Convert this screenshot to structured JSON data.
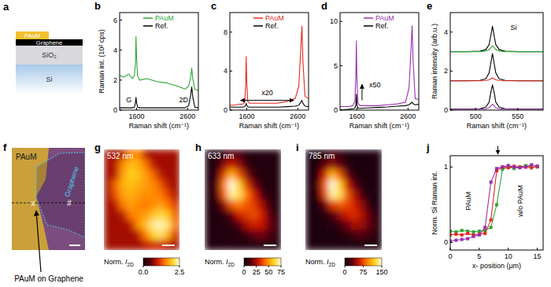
{
  "chart_data": [
    {
      "type": "diagram",
      "panel": "a",
      "layers": [
        {
          "label": "PAuM",
          "color": "#f2c12e"
        },
        {
          "label": "Graphene",
          "color": "#000000"
        },
        {
          "label": "SiO₂",
          "color": "#d9d9de"
        },
        {
          "label": "Si",
          "color": "#a9c9ea"
        }
      ]
    },
    {
      "type": "line",
      "panel": "b",
      "xlabel": "Raman shift (cm⁻¹)",
      "ylabel": "Raman int. (10² cps)",
      "x": [
        1270,
        1350,
        1450,
        1520,
        1560,
        1580,
        1590,
        1600,
        1620,
        1660,
        1800,
        2000,
        2200,
        2400,
        2550,
        2620,
        2660,
        2680,
        2700,
        2740,
        2810
      ],
      "xlim": [
        1270,
        2810
      ],
      "xticks": [
        1600,
        2600
      ],
      "ylim": [
        0,
        6.5
      ],
      "yticks": [
        0,
        2,
        4,
        6
      ],
      "legend": "top",
      "series": [
        {
          "name": "PAuM",
          "color": "#2ea836",
          "values": [
            2.3,
            2.2,
            2.4,
            2.1,
            2.3,
            3.2,
            4.9,
            3.6,
            2.3,
            2.0,
            2.1,
            1.9,
            1.8,
            1.6,
            1.4,
            1.6,
            2.2,
            2.8,
            2.1,
            1.4,
            1.3
          ]
        },
        {
          "name": "Ref.",
          "color": "#000000",
          "values": [
            0.15,
            0.15,
            0.15,
            0.15,
            0.2,
            0.5,
            0.85,
            0.5,
            0.2,
            0.15,
            0.15,
            0.15,
            0.15,
            0.15,
            0.15,
            0.3,
            1.0,
            1.55,
            0.9,
            0.2,
            0.15
          ]
        }
      ],
      "annotations": [
        {
          "text": "G",
          "x": 1450,
          "y": 0.55
        },
        {
          "text": "2D",
          "x": 2520,
          "y": 0.55
        }
      ]
    },
    {
      "type": "line",
      "panel": "c",
      "xlabel": "Raman shift (cm⁻¹)",
      "x": [
        1270,
        1350,
        1450,
        1520,
        1560,
        1580,
        1590,
        1600,
        1620,
        1660,
        1800,
        2000,
        2200,
        2400,
        2550,
        2620,
        2660,
        2680,
        2700,
        2740,
        2810
      ],
      "xlim": [
        1270,
        2810
      ],
      "xticks": [
        1600,
        2600
      ],
      "ylim": [
        0,
        10
      ],
      "yticks": [
        0,
        4,
        8
      ],
      "legend": "top",
      "series": [
        {
          "name": "PAuM",
          "color": "#e8281e",
          "values": [
            0.5,
            0.5,
            0.6,
            0.6,
            0.8,
            2.5,
            5.5,
            3.0,
            0.9,
            0.7,
            0.7,
            0.7,
            0.7,
            0.9,
            1.2,
            2.5,
            6.5,
            8.6,
            5.0,
            1.4,
            1.2
          ]
        },
        {
          "name": "Ref.",
          "color": "#000000",
          "values": [
            0.3,
            0.3,
            0.3,
            0.3,
            0.35,
            0.5,
            0.7,
            0.5,
            0.35,
            0.3,
            0.3,
            0.3,
            0.3,
            0.35,
            0.4,
            0.5,
            0.8,
            1.0,
            0.7,
            0.4,
            0.35
          ]
        }
      ],
      "annotations": [
        {
          "text": "x20",
          "x": 2000,
          "y": 1.5,
          "arrow": [
            1480,
            1.0,
            2520,
            1.0
          ],
          "arrow_style": "double"
        }
      ]
    },
    {
      "type": "line",
      "panel": "d",
      "xlabel": "Raman shift (cm⁻¹)",
      "x": [
        1270,
        1350,
        1450,
        1520,
        1560,
        1580,
        1590,
        1600,
        1620,
        1660,
        1800,
        2000,
        2200,
        2400,
        2550,
        2620,
        2660,
        2680,
        2700,
        2740,
        2810
      ],
      "xlim": [
        1270,
        2810
      ],
      "xticks": [
        1600,
        2600
      ],
      "ylim": [
        0,
        11
      ],
      "yticks": [
        0,
        5,
        10
      ],
      "legend": "top",
      "series": [
        {
          "name": "PAuM",
          "color": "#9b2fae",
          "values": [
            0.4,
            0.4,
            0.4,
            0.5,
            1.0,
            4.0,
            7.8,
            3.5,
            0.8,
            0.5,
            0.5,
            0.5,
            0.6,
            0.7,
            0.9,
            2.5,
            7.0,
            9.5,
            5.5,
            1.3,
            1.2
          ]
        },
        {
          "name": "Ref.",
          "color": "#000000",
          "values": [
            0,
            0.05,
            0.1,
            0.15,
            0.2,
            0.6,
            1.8,
            0.6,
            0.2,
            0.2,
            0.25,
            0.3,
            0.35,
            0.45,
            0.5,
            0.6,
            0.8,
            0.9,
            0.7,
            0.6,
            0.65
          ]
        }
      ],
      "annotations": [
        {
          "text": "x50",
          "x": 1950,
          "y": 2.6,
          "arrow": [
            1700,
            1.1,
            1700,
            2.9
          ],
          "arrow_style": "single"
        }
      ]
    },
    {
      "type": "line",
      "panel": "e",
      "xlabel": "Raman shift (cm⁻¹)",
      "ylabel": "Raman intensity (arb.u.)",
      "x": [
        470,
        490,
        505,
        512,
        516,
        518,
        520,
        522,
        524,
        528,
        535,
        550,
        580
      ],
      "xlim": [
        470,
        580
      ],
      "xticks": [
        500,
        550
      ],
      "ylim": [
        0,
        5
      ],
      "yticks": [
        0,
        2,
        4
      ],
      "series": [
        {
          "color": "#000000",
          "values": [
            3.0,
            3.0,
            3.02,
            3.1,
            3.35,
            3.8,
            4.3,
            3.8,
            3.35,
            3.1,
            3.02,
            3.0,
            3.0
          ]
        },
        {
          "color": "#2ea836",
          "values": [
            3.0,
            3.0,
            3.0,
            3.03,
            3.1,
            3.2,
            3.3,
            3.2,
            3.1,
            3.03,
            3.0,
            3.0,
            3.0
          ]
        },
        {
          "color": "#000000",
          "values": [
            1.5,
            1.5,
            1.52,
            1.6,
            1.9,
            2.4,
            2.9,
            2.4,
            1.9,
            1.6,
            1.52,
            1.5,
            1.5
          ]
        },
        {
          "color": "#e8281e",
          "values": [
            1.5,
            1.5,
            1.5,
            1.51,
            1.55,
            1.6,
            1.65,
            1.6,
            1.55,
            1.51,
            1.5,
            1.5,
            1.5
          ]
        },
        {
          "color": "#000000",
          "values": [
            0.05,
            0.05,
            0.07,
            0.15,
            0.4,
            0.9,
            1.3,
            0.9,
            0.4,
            0.15,
            0.07,
            0.05,
            0.05
          ]
        },
        {
          "color": "#9b2fae",
          "values": [
            0.05,
            0.05,
            0.05,
            0.07,
            0.12,
            0.22,
            0.3,
            0.22,
            0.12,
            0.07,
            0.05,
            0.05,
            0.05
          ]
        }
      ],
      "annotations": [
        {
          "text": "Si",
          "x": 545,
          "y": 4.1
        }
      ]
    },
    {
      "type": "image",
      "panel": "f",
      "labels": {
        "paum": "PAuM",
        "graphene": "Graphene",
        "point_x": "x",
        "point_hash": "#",
        "caption": "PAuM on Graphene"
      }
    },
    {
      "type": "heatmap",
      "panel": "g",
      "title": "532 nm",
      "cells": [
        [
          0.8,
          0.8,
          0.9,
          1.5,
          1.6,
          0.9,
          0.8,
          0.8,
          0.8,
          0.8
        ],
        [
          0.8,
          0.9,
          1.6,
          1.9,
          1.8,
          1.5,
          0.9,
          0.8,
          0.8,
          0.8
        ],
        [
          0.8,
          0.9,
          1.7,
          2.0,
          1.9,
          1.7,
          1.4,
          0.9,
          0.8,
          0.8
        ],
        [
          0.8,
          1.4,
          1.8,
          1.9,
          1.8,
          1.7,
          1.6,
          1.3,
          0.9,
          0.8
        ],
        [
          0.8,
          1.3,
          1.7,
          1.8,
          1.7,
          1.6,
          1.6,
          1.5,
          1.2,
          0.8
        ],
        [
          0.8,
          0.9,
          1.5,
          1.7,
          1.6,
          1.5,
          1.6,
          1.7,
          1.5,
          1.1
        ],
        [
          0.8,
          0.8,
          0.9,
          1.5,
          1.6,
          1.7,
          1.9,
          2.1,
          1.9,
          1.3
        ],
        [
          0.8,
          0.8,
          0.8,
          0.9,
          1.6,
          1.9,
          2.3,
          2.4,
          2.2,
          1.4
        ],
        [
          0.8,
          0.8,
          0.8,
          0.8,
          0.9,
          1.5,
          2.0,
          2.2,
          1.8,
          1.0
        ],
        [
          0.8,
          0.8,
          0.8,
          0.8,
          0.8,
          0.9,
          1.0,
          1.0,
          0.9,
          0.8
        ]
      ],
      "colorbar_range": [
        0,
        2.5
      ],
      "colorbar_ticks": [
        {
          "value": 0,
          "label": "0.0"
        },
        2.5
      ],
      "colorbar_label": {
        "text": "Norm. ",
        "var": "I",
        "sub": "2D"
      }
    },
    {
      "type": "heatmap",
      "panel": "h",
      "title": "633 nm",
      "cells": [
        [
          3,
          3,
          3,
          15,
          12,
          3,
          3,
          3,
          3,
          3
        ],
        [
          3,
          3,
          20,
          30,
          22,
          8,
          3,
          3,
          3,
          3
        ],
        [
          3,
          5,
          35,
          55,
          40,
          20,
          5,
          3,
          3,
          3
        ],
        [
          3,
          10,
          45,
          75,
          60,
          35,
          18,
          4,
          3,
          3
        ],
        [
          3,
          8,
          40,
          70,
          65,
          45,
          30,
          12,
          4,
          3
        ],
        [
          3,
          3,
          20,
          40,
          45,
          40,
          35,
          25,
          8,
          3
        ],
        [
          3,
          3,
          5,
          15,
          30,
          35,
          38,
          30,
          15,
          4
        ],
        [
          3,
          3,
          3,
          5,
          12,
          25,
          30,
          28,
          18,
          5
        ],
        [
          3,
          3,
          3,
          3,
          4,
          8,
          15,
          18,
          12,
          4
        ],
        [
          3,
          3,
          3,
          3,
          3,
          3,
          3,
          3,
          3,
          3
        ]
      ],
      "colorbar_range": [
        0,
        75
      ],
      "colorbar_ticks": [
        0,
        25,
        50,
        75
      ],
      "colorbar_label": {
        "text": "Norm. ",
        "var": "I",
        "sub": "2D"
      }
    },
    {
      "type": "heatmap",
      "panel": "i",
      "title": "785 nm",
      "cells": [
        [
          5,
          5,
          5,
          20,
          15,
          5,
          5,
          5,
          5,
          5
        ],
        [
          5,
          5,
          30,
          45,
          30,
          10,
          5,
          5,
          5,
          5
        ],
        [
          5,
          8,
          60,
          110,
          80,
          30,
          8,
          5,
          5,
          5
        ],
        [
          5,
          15,
          80,
          150,
          120,
          60,
          25,
          6,
          5,
          5
        ],
        [
          5,
          10,
          70,
          140,
          130,
          80,
          50,
          15,
          5,
          5
        ],
        [
          5,
          5,
          30,
          70,
          80,
          75,
          60,
          40,
          10,
          5
        ],
        [
          5,
          5,
          8,
          20,
          45,
          60,
          65,
          50,
          25,
          6
        ],
        [
          5,
          5,
          5,
          8,
          15,
          35,
          50,
          45,
          30,
          8
        ],
        [
          5,
          5,
          5,
          5,
          6,
          10,
          20,
          25,
          15,
          6
        ],
        [
          5,
          5,
          5,
          5,
          5,
          5,
          5,
          5,
          5,
          5
        ]
      ],
      "colorbar_range": [
        0,
        150
      ],
      "colorbar_ticks": [
        0,
        75,
        150
      ],
      "colorbar_label": {
        "text": "Norm. ",
        "var": "I",
        "sub": "2D"
      }
    },
    {
      "type": "line",
      "panel": "j",
      "xlabel": "x- position (μm)",
      "ylabel": "Norm. Si Raman int.",
      "x": [
        0,
        1,
        2,
        3,
        4,
        5,
        6,
        7,
        8,
        9,
        10,
        11,
        12,
        13,
        14,
        15
      ],
      "xlim": [
        0,
        16
      ],
      "xticks": [
        0,
        5,
        10,
        15
      ],
      "ylim": [
        -0.1,
        1.15
      ],
      "yticks": [
        0,
        1
      ],
      "series": [
        {
          "color": "#2ea836",
          "marker": "square",
          "line_style": "solid",
          "values": [
            0.15,
            0.14,
            0.16,
            0.15,
            0.14,
            0.15,
            0.16,
            0.2,
            0.5,
            0.97,
            1.0,
            0.98,
            1.0,
            1.02,
            1.0,
            1.0
          ]
        },
        {
          "color": "#e8281e",
          "marker": "square",
          "line_style": "solid",
          "values": [
            0.1,
            0.11,
            0.1,
            0.12,
            0.1,
            0.11,
            0.12,
            0.3,
            0.95,
            1.0,
            0.99,
            1.01,
            1.0,
            1.0,
            0.99,
            1.01
          ]
        },
        {
          "color": "#9b2fae",
          "marker": "square",
          "line_style": "solid",
          "values": [
            0.02,
            0.03,
            0.04,
            0.05,
            0.08,
            0.1,
            0.2,
            0.8,
            0.98,
            1.0,
            1.02,
            1.0,
            0.99,
            1.0,
            1.03,
            1.01
          ]
        }
      ],
      "annotations": [
        {
          "text": "PAuM",
          "x": 3.5,
          "y": 0.55
        },
        {
          "text": "w/o PAuM",
          "x": 12.5,
          "y": 0.55
        },
        {
          "arrow": [
            8.2,
            1.28,
            8.2,
            1.17
          ],
          "arrow_style": "single"
        }
      ]
    }
  ]
}
